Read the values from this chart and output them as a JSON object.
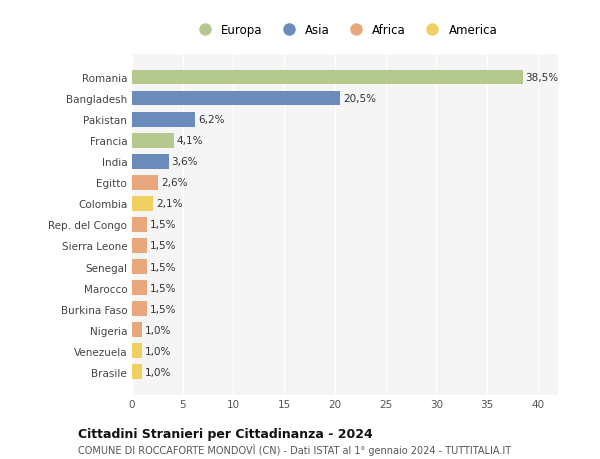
{
  "countries": [
    "Romania",
    "Bangladesh",
    "Pakistan",
    "Francia",
    "India",
    "Egitto",
    "Colombia",
    "Rep. del Congo",
    "Sierra Leone",
    "Senegal",
    "Marocco",
    "Burkina Faso",
    "Nigeria",
    "Venezuela",
    "Brasile"
  ],
  "values": [
    38.5,
    20.5,
    6.2,
    4.1,
    3.6,
    2.6,
    2.1,
    1.5,
    1.5,
    1.5,
    1.5,
    1.5,
    1.0,
    1.0,
    1.0
  ],
  "labels": [
    "38,5%",
    "20,5%",
    "6,2%",
    "4,1%",
    "3,6%",
    "2,6%",
    "2,1%",
    "1,5%",
    "1,5%",
    "1,5%",
    "1,5%",
    "1,5%",
    "1,0%",
    "1,0%",
    "1,0%"
  ],
  "continents": [
    "Europa",
    "Asia",
    "Asia",
    "Europa",
    "Asia",
    "Africa",
    "America",
    "Africa",
    "Africa",
    "Africa",
    "Africa",
    "Africa",
    "Africa",
    "America",
    "America"
  ],
  "colors": {
    "Europa": "#b5c98e",
    "Asia": "#6b8cba",
    "Africa": "#e8a87c",
    "America": "#f0d060"
  },
  "legend_order": [
    "Europa",
    "Asia",
    "Africa",
    "America"
  ],
  "title": "Cittadini Stranieri per Cittadinanza - 2024",
  "subtitle": "COMUNE DI ROCCAFORTE MONDOVÌ (CN) - Dati ISTAT al 1° gennaio 2024 - TUTTITALIA.IT",
  "xlim": [
    0,
    42
  ],
  "xticks": [
    0,
    5,
    10,
    15,
    20,
    25,
    30,
    35,
    40
  ],
  "background_color": "#ffffff",
  "plot_bg_color": "#f5f5f5",
  "grid_color": "#ffffff"
}
